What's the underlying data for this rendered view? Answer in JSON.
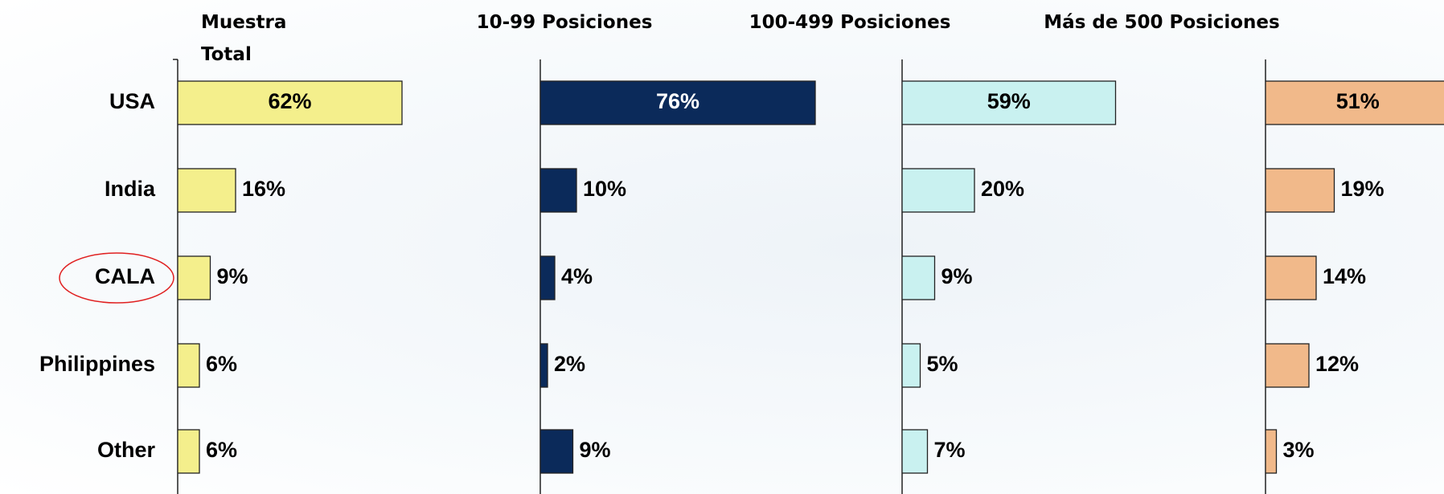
{
  "chart_data": {
    "type": "bar",
    "categories": [
      "USA",
      "India",
      "CALA",
      "Philippines",
      "Other"
    ],
    "series": [
      {
        "name": "Muestra Total",
        "color": "#f4ef8c",
        "values": [
          62,
          16,
          9,
          6,
          6
        ],
        "value_labels": [
          "62%",
          "16%",
          "9%",
          "6%",
          "6%"
        ]
      },
      {
        "name": "10-99 Posiciones",
        "color": "#0b2a5a",
        "values": [
          76,
          10,
          4,
          2,
          9
        ],
        "value_labels": [
          "76%",
          "10%",
          "4%",
          "2%",
          "9%"
        ]
      },
      {
        "name": "100-499 Posiciones",
        "color": "#c9f1f0",
        "values": [
          59,
          20,
          9,
          5,
          7
        ],
        "value_labels": [
          "59%",
          "20%",
          "9%",
          "5%",
          "7%"
        ]
      },
      {
        "name": "Más de 500 Posiciones",
        "color": "#f1b98a",
        "values": [
          51,
          19,
          14,
          12,
          3
        ],
        "value_labels": [
          "51%",
          "19%",
          "14%",
          "12%",
          "3%"
        ]
      }
    ]
  }
}
